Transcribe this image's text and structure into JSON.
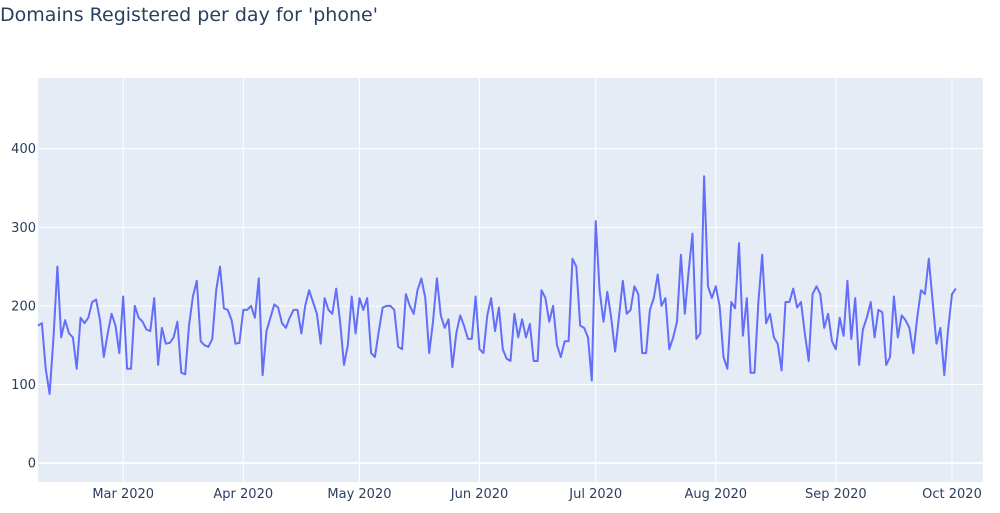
{
  "chart_data": {
    "type": "line",
    "title": "Domains Registered per day for 'phone'",
    "xlabel": "",
    "ylabel": "",
    "x_start": "2020-02-08",
    "x_end": "2020-10-09",
    "xlim": [
      "2020-02-08",
      "2020-10-09"
    ],
    "ylim": [
      -24,
      490
    ],
    "y_ticks": [
      0,
      100,
      200,
      300,
      400
    ],
    "x_ticks": [
      {
        "date": "2020-03-01",
        "label": "Mar 2020"
      },
      {
        "date": "2020-04-01",
        "label": "Apr 2020"
      },
      {
        "date": "2020-05-01",
        "label": "May 2020"
      },
      {
        "date": "2020-06-01",
        "label": "Jun 2020"
      },
      {
        "date": "2020-07-01",
        "label": "Jul 2020"
      },
      {
        "date": "2020-08-01",
        "label": "Aug 2020"
      },
      {
        "date": "2020-09-01",
        "label": "Sep 2020"
      },
      {
        "date": "2020-10-01",
        "label": "Oct 2020"
      }
    ],
    "grid": true,
    "colors": {
      "line": "#636efa",
      "plot_bg": "#e5ecf6",
      "grid": "#ffffff",
      "text": "#2a3f5f"
    },
    "series": [
      {
        "values": [
          175,
          178,
          120,
          88,
          160,
          250,
          160,
          182,
          165,
          160,
          120,
          185,
          178,
          185,
          205,
          208,
          182,
          135,
          165,
          190,
          175,
          140,
          212,
          120,
          120,
          200,
          185,
          180,
          170,
          168,
          210,
          125,
          172,
          152,
          153,
          160,
          180,
          115,
          113,
          175,
          212,
          232,
          155,
          150,
          148,
          158,
          220,
          250,
          197,
          195,
          182,
          152,
          153,
          195,
          195,
          200,
          185,
          235,
          112,
          168,
          185,
          202,
          198,
          178,
          172,
          185,
          195,
          195,
          165,
          200,
          220,
          205,
          190,
          152,
          210,
          195,
          190,
          222,
          180,
          125,
          150,
          212,
          165,
          210,
          195,
          210,
          140,
          135,
          168,
          198,
          200,
          200,
          195,
          148,
          145,
          215,
          200,
          190,
          220,
          235,
          210,
          140,
          180,
          235,
          188,
          172,
          183,
          122,
          165,
          188,
          175,
          158,
          158,
          212,
          145,
          140,
          188,
          210,
          168,
          198,
          145,
          133,
          130,
          190,
          160,
          183,
          160,
          177,
          130,
          130,
          220,
          210,
          180,
          200,
          150,
          135,
          155,
          155,
          260,
          250,
          175,
          172,
          160,
          105,
          308,
          220,
          180,
          218,
          185,
          142,
          185,
          232,
          190,
          195,
          225,
          215,
          140,
          140,
          195,
          210,
          240,
          200,
          210,
          145,
          160,
          180,
          265,
          190,
          245,
          292,
          158,
          165,
          365,
          225,
          210,
          225,
          200,
          135,
          120,
          205,
          197,
          280,
          162,
          210,
          115,
          115,
          205,
          265,
          178,
          190,
          160,
          152,
          118,
          205,
          205,
          222,
          198,
          205,
          165,
          130,
          215,
          225,
          215,
          172,
          190,
          155,
          145,
          185,
          162,
          232,
          158,
          210,
          125,
          170,
          185,
          205,
          160,
          195,
          192,
          125,
          135,
          212,
          160,
          188,
          182,
          172,
          140,
          185,
          220,
          215,
          260,
          205,
          152,
          172,
          112,
          170,
          215,
          222
        ]
      }
    ]
  }
}
